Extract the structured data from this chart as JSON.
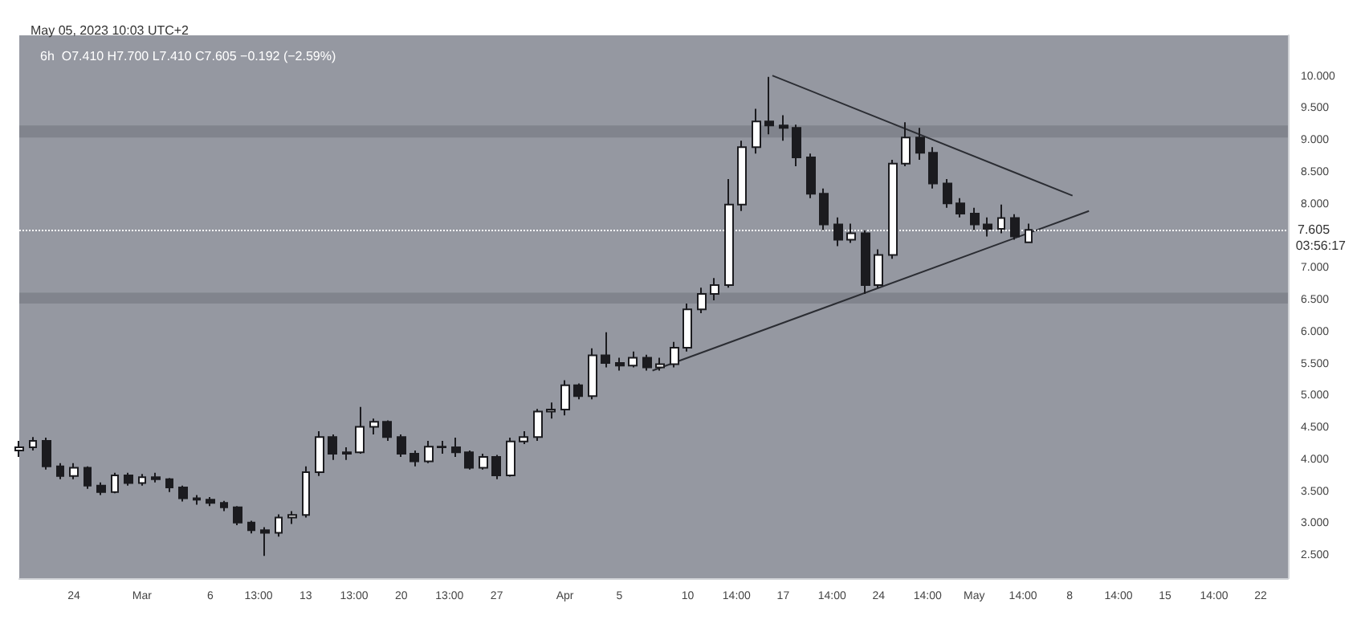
{
  "chart_data": {
    "type": "candlestick",
    "title": "May 05, 2023 10:03 UTC+2",
    "subtitle": "6h  O7.410 H7.700 L7.410 C7.605 −0.192 (−2.59%)",
    "x": [
      "2023-02-20",
      "2023-02-21",
      "2023-02-22",
      "2023-02-23",
      "2023-02-24",
      "2023-02-25",
      "2023-02-26",
      "2023-02-27",
      "2023-02-28",
      "2023-03-01",
      "2023-03-02",
      "2023-03-03",
      "2023-03-04",
      "2023-03-05",
      "2023-03-06",
      "2023-03-07",
      "2023-03-08",
      "2023-03-09",
      "2023-03-10",
      "2023-03-11",
      "2023-03-12",
      "2023-03-13",
      "2023-03-14",
      "2023-03-15",
      "2023-03-16",
      "2023-03-17",
      "2023-03-18",
      "2023-03-19",
      "2023-03-20",
      "2023-03-21",
      "2023-03-22",
      "2023-03-23",
      "2023-03-24",
      "2023-03-25",
      "2023-03-26",
      "2023-03-27",
      "2023-03-28",
      "2023-03-29",
      "2023-03-30",
      "2023-03-31",
      "2023-04-01",
      "2023-04-02",
      "2023-04-03",
      "2023-04-04",
      "2023-04-05",
      "2023-04-06",
      "2023-04-07",
      "2023-04-08",
      "2023-04-09",
      "2023-04-10",
      "2023-04-11",
      "2023-04-12",
      "2023-04-13",
      "2023-04-14",
      "2023-04-15",
      "2023-04-16",
      "2023-04-17",
      "2023-04-18",
      "2023-04-19",
      "2023-04-20",
      "2023-04-21",
      "2023-04-22",
      "2023-04-23",
      "2023-04-24",
      "2023-04-25",
      "2023-04-26",
      "2023-04-27",
      "2023-04-28",
      "2023-04-29",
      "2023-04-30",
      "2023-05-01",
      "2023-05-02",
      "2023-05-03",
      "2023-05-04",
      "2023-05-05"
    ],
    "ohlc": [
      [
        4.15,
        4.3,
        4.05,
        4.2
      ],
      [
        4.2,
        4.36,
        4.15,
        4.3
      ],
      [
        4.3,
        4.35,
        3.85,
        3.9
      ],
      [
        3.9,
        3.95,
        3.7,
        3.75
      ],
      [
        3.75,
        3.95,
        3.7,
        3.88
      ],
      [
        3.88,
        3.9,
        3.55,
        3.6
      ],
      [
        3.6,
        3.65,
        3.45,
        3.5
      ],
      [
        3.5,
        3.8,
        3.48,
        3.76
      ],
      [
        3.76,
        3.8,
        3.6,
        3.64
      ],
      [
        3.64,
        3.78,
        3.6,
        3.73
      ],
      [
        3.73,
        3.8,
        3.65,
        3.7
      ],
      [
        3.7,
        3.72,
        3.5,
        3.57
      ],
      [
        3.57,
        3.6,
        3.35,
        3.4
      ],
      [
        3.4,
        3.45,
        3.3,
        3.38
      ],
      [
        3.38,
        3.42,
        3.28,
        3.33
      ],
      [
        3.33,
        3.36,
        3.2,
        3.26
      ],
      [
        3.26,
        3.28,
        2.98,
        3.02
      ],
      [
        3.02,
        3.05,
        2.85,
        2.9
      ],
      [
        2.9,
        2.95,
        2.5,
        2.86
      ],
      [
        2.86,
        3.15,
        2.8,
        3.1
      ],
      [
        3.1,
        3.2,
        3.0,
        3.14
      ],
      [
        3.14,
        3.9,
        3.1,
        3.81
      ],
      [
        3.81,
        4.45,
        3.75,
        4.36
      ],
      [
        4.36,
        4.4,
        4.0,
        4.1
      ],
      [
        4.1,
        4.2,
        4.0,
        4.12
      ],
      [
        4.12,
        4.83,
        4.1,
        4.52
      ],
      [
        4.52,
        4.65,
        4.4,
        4.6
      ],
      [
        4.6,
        4.62,
        4.3,
        4.36
      ],
      [
        4.36,
        4.4,
        4.05,
        4.1
      ],
      [
        4.1,
        4.15,
        3.9,
        3.98
      ],
      [
        3.98,
        4.3,
        3.95,
        4.21
      ],
      [
        4.21,
        4.3,
        4.1,
        4.2
      ],
      [
        4.2,
        4.35,
        4.05,
        4.12
      ],
      [
        4.12,
        4.15,
        3.85,
        3.88
      ],
      [
        3.88,
        4.1,
        3.85,
        4.05
      ],
      [
        4.05,
        4.08,
        3.7,
        3.76
      ],
      [
        3.76,
        4.35,
        3.74,
        4.29
      ],
      [
        4.29,
        4.45,
        4.25,
        4.36
      ],
      [
        4.36,
        4.8,
        4.3,
        4.76
      ],
      [
        4.76,
        4.9,
        4.65,
        4.79
      ],
      [
        4.79,
        5.25,
        4.7,
        5.17
      ],
      [
        5.17,
        5.2,
        4.95,
        5.0
      ],
      [
        5.0,
        5.75,
        4.95,
        5.64
      ],
      [
        5.64,
        6.0,
        5.45,
        5.52
      ],
      [
        5.52,
        5.6,
        5.4,
        5.48
      ],
      [
        5.48,
        5.7,
        5.45,
        5.6
      ],
      [
        5.6,
        5.65,
        5.4,
        5.45
      ],
      [
        5.45,
        5.6,
        5.4,
        5.5
      ],
      [
        5.5,
        5.85,
        5.45,
        5.76
      ],
      [
        5.76,
        6.45,
        5.7,
        6.36
      ],
      [
        6.36,
        6.7,
        6.3,
        6.6
      ],
      [
        6.6,
        6.85,
        6.5,
        6.74
      ],
      [
        6.74,
        8.4,
        6.7,
        8.0
      ],
      [
        8.0,
        9.0,
        7.9,
        8.9
      ],
      [
        8.9,
        9.5,
        8.8,
        9.3
      ],
      [
        9.3,
        10.0,
        9.1,
        9.24
      ],
      [
        9.24,
        9.4,
        9.0,
        9.2
      ],
      [
        9.2,
        9.25,
        8.6,
        8.74
      ],
      [
        8.74,
        8.8,
        8.1,
        8.17
      ],
      [
        8.17,
        8.25,
        7.6,
        7.69
      ],
      [
        7.69,
        7.8,
        7.35,
        7.45
      ],
      [
        7.45,
        7.7,
        7.4,
        7.55
      ],
      [
        7.55,
        7.6,
        6.6,
        6.74
      ],
      [
        6.74,
        7.3,
        6.7,
        7.21
      ],
      [
        7.21,
        8.7,
        7.15,
        8.64
      ],
      [
        8.64,
        9.29,
        8.6,
        9.05
      ],
      [
        9.05,
        9.2,
        8.7,
        8.81
      ],
      [
        8.81,
        8.9,
        8.25,
        8.33
      ],
      [
        8.33,
        8.4,
        7.95,
        8.02
      ],
      [
        8.02,
        8.1,
        7.8,
        7.86
      ],
      [
        7.86,
        7.95,
        7.6,
        7.69
      ],
      [
        7.69,
        7.8,
        7.5,
        7.62
      ],
      [
        7.62,
        8.0,
        7.55,
        7.79
      ],
      [
        7.79,
        7.85,
        7.45,
        7.5
      ],
      [
        7.41,
        7.7,
        7.41,
        7.605
      ]
    ],
    "colors": [
      "#ffffff",
      "#ffffff",
      "#1b1b1f",
      "#1b1b1f",
      "#ffffff",
      "#1b1b1f",
      "#1b1b1f",
      "#ffffff",
      "#1b1b1f",
      "#ffffff",
      "#1b1b1f",
      "#1b1b1f",
      "#1b1b1f",
      "#1b1b1f",
      "#1b1b1f",
      "#1b1b1f",
      "#1b1b1f",
      "#1b1b1f",
      "#1b1b1f",
      "#ffffff",
      "#ffffff",
      "#ffffff",
      "#ffffff",
      "#1b1b1f",
      "#ffffff",
      "#ffffff",
      "#ffffff",
      "#1b1b1f",
      "#1b1b1f",
      "#1b1b1f",
      "#ffffff",
      "#1b1b1f",
      "#1b1b1f",
      "#1b1b1f",
      "#ffffff",
      "#1b1b1f",
      "#ffffff",
      "#ffffff",
      "#ffffff",
      "#ffffff",
      "#ffffff",
      "#1b1b1f",
      "#ffffff",
      "#1b1b1f",
      "#1b1b1f",
      "#ffffff",
      "#1b1b1f",
      "#ffffff",
      "#ffffff",
      "#ffffff",
      "#ffffff",
      "#ffffff",
      "#ffffff",
      "#ffffff",
      "#ffffff",
      "#1b1b1f",
      "#1b1b1f",
      "#1b1b1f",
      "#1b1b1f",
      "#1b1b1f",
      "#1b1b1f",
      "#ffffff",
      "#1b1b1f",
      "#ffffff",
      "#ffffff",
      "#ffffff",
      "#1b1b1f",
      "#1b1b1f",
      "#1b1b1f",
      "#1b1b1f",
      "#1b1b1f",
      "#1b1b1f",
      "#ffffff",
      "#1b1b1f",
      "#ffffff"
    ],
    "annotations": [
      "03:56:17"
    ],
    "series": [
      {
        "type": "line",
        "x": [
          "2023-04-16T05:00",
          "2023-05-08T05:00"
        ],
        "values": [
          10.02,
          8.14
        ],
        "color": "#2b2d33"
      },
      {
        "type": "line",
        "x": [
          "2023-04-07T10:00",
          "2023-05-09T10:00"
        ],
        "values": [
          5.4,
          7.9
        ],
        "color": "#2b2d33"
      }
    ],
    "bands": [
      {
        "axis": "y",
        "from": 9.05,
        "to": 9.24,
        "color": "#7c7f88"
      },
      {
        "axis": "y",
        "from": 6.45,
        "to": 6.62,
        "color": "#7c7f88"
      }
    ],
    "ref_lines": [
      {
        "axis": "y",
        "value": 7.605,
        "label": "7.605",
        "color": "#ffffff",
        "line_style": "dotted"
      }
    ],
    "xlim": [
      "2023-02-20",
      "2023-05-24"
    ],
    "xticks": [
      {
        "value": "2023-02-24",
        "label": "24"
      },
      {
        "value": "2023-03-01",
        "label": "Mar"
      },
      {
        "value": "2023-03-06",
        "label": "6"
      },
      {
        "value": "2023-03-09T13:00",
        "label": "13:00"
      },
      {
        "value": "2023-03-13",
        "label": "13"
      },
      {
        "value": "2023-03-16T13:00",
        "label": "13:00"
      },
      {
        "value": "2023-03-20",
        "label": "20"
      },
      {
        "value": "2023-03-23T13:00",
        "label": "13:00"
      },
      {
        "value": "2023-03-27",
        "label": "27"
      },
      {
        "value": "2023-04-01",
        "label": "Apr"
      },
      {
        "value": "2023-04-05",
        "label": "5"
      },
      {
        "value": "2023-04-10",
        "label": "10"
      },
      {
        "value": "2023-04-13T14:00",
        "label": "14:00"
      },
      {
        "value": "2023-04-17",
        "label": "17"
      },
      {
        "value": "2023-04-20T14:00",
        "label": "14:00"
      },
      {
        "value": "2023-04-24",
        "label": "24"
      },
      {
        "value": "2023-04-27T14:00",
        "label": "14:00"
      },
      {
        "value": "2023-05-01",
        "label": "May"
      },
      {
        "value": "2023-05-04T14:00",
        "label": "14:00"
      },
      {
        "value": "2023-05-08",
        "label": "8"
      },
      {
        "value": "2023-05-11T14:00",
        "label": "14:00"
      },
      {
        "value": "2023-05-15",
        "label": "15"
      },
      {
        "value": "2023-05-18T14:00",
        "label": "14:00"
      },
      {
        "value": "2023-05-22",
        "label": "22"
      }
    ],
    "ylim": [
      2.15,
      10.65
    ],
    "yticks": [
      {
        "value": 2.5,
        "label": "2.500"
      },
      {
        "value": 3,
        "label": "3.000"
      },
      {
        "value": 3.5,
        "label": "3.500"
      },
      {
        "value": 4,
        "label": "4.000"
      },
      {
        "value": 4.5,
        "label": "4.500"
      },
      {
        "value": 5,
        "label": "5.000"
      },
      {
        "value": 5.5,
        "label": "5.500"
      },
      {
        "value": 6,
        "label": "6.000"
      },
      {
        "value": 6.5,
        "label": "6.500"
      },
      {
        "value": 7,
        "label": "7.000"
      },
      {
        "value": 8,
        "label": "8.000"
      },
      {
        "value": 8.5,
        "label": "8.500"
      },
      {
        "value": 9,
        "label": "9.000"
      },
      {
        "value": 9.5,
        "label": "9.500"
      },
      {
        "value": 10,
        "label": "10.000"
      }
    ]
  }
}
